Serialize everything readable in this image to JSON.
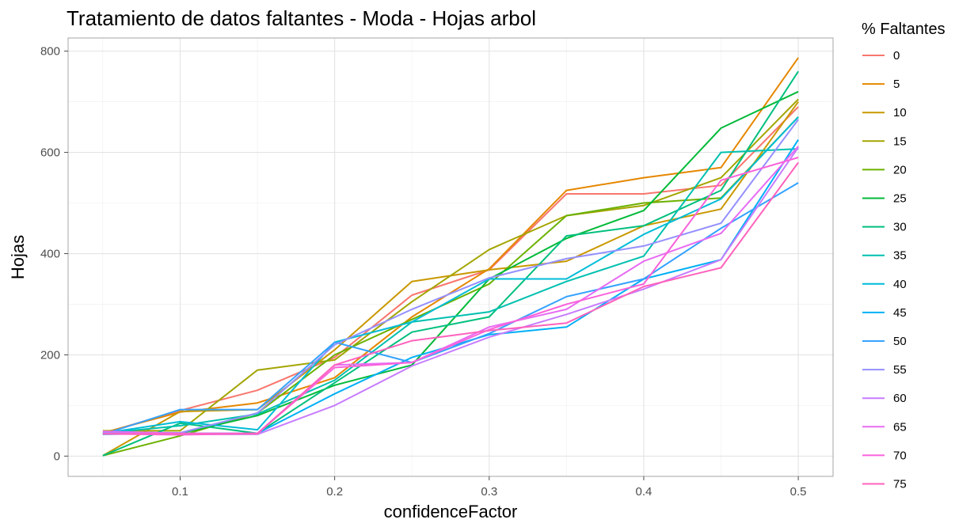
{
  "chart_data": {
    "type": "line",
    "title": "Tratamiento de datos faltantes - Moda - Hojas arbol",
    "xlabel": "confidenceFactor",
    "ylabel": "Hojas",
    "x": [
      0.05,
      0.1,
      0.15,
      0.2,
      0.25,
      0.3,
      0.35,
      0.4,
      0.45,
      0.5
    ],
    "xlim": [
      0.0275,
      0.5225
    ],
    "ylim": [
      -40,
      826
    ],
    "xticks": [
      0.1,
      0.2,
      0.3,
      0.4,
      0.5
    ],
    "xtick_labels": [
      "0.1",
      "0.2",
      "0.3",
      "0.4",
      "0.5"
    ],
    "yticks": [
      0,
      200,
      400,
      600,
      800
    ],
    "ytick_labels": [
      "0",
      "200",
      "400",
      "600",
      "800"
    ],
    "grid": true,
    "legend": {
      "title": "% Faltantes",
      "position": "right"
    },
    "series": [
      {
        "name": "0",
        "color": "#F8766D",
        "values": [
          45,
          90,
          130,
          195,
          318,
          368,
          518,
          518,
          535,
          690
        ]
      },
      {
        "name": "5",
        "color": "#E58700",
        "values": [
          46,
          87,
          105,
          155,
          275,
          370,
          525,
          550,
          570,
          787
        ]
      },
      {
        "name": "10",
        "color": "#C99800",
        "values": [
          1,
          88,
          92,
          210,
          345,
          368,
          385,
          455,
          488,
          700
        ]
      },
      {
        "name": "15",
        "color": "#A3A500",
        "values": [
          50,
          50,
          170,
          190,
          305,
          408,
          475,
          495,
          550,
          705
        ]
      },
      {
        "name": "20",
        "color": "#6BB100",
        "values": [
          1,
          40,
          85,
          200,
          270,
          340,
          475,
          500,
          510,
          670
        ]
      },
      {
        "name": "25",
        "color": "#00BA38",
        "values": [
          45,
          45,
          80,
          140,
          180,
          350,
          430,
          485,
          648,
          720
        ]
      },
      {
        "name": "30",
        "color": "#00BF7D",
        "values": [
          1,
          65,
          45,
          145,
          245,
          275,
          435,
          455,
          525,
          760
        ]
      },
      {
        "name": "35",
        "color": "#00C0AF",
        "values": [
          45,
          60,
          83,
          150,
          265,
          285,
          345,
          395,
          600,
          607
        ]
      },
      {
        "name": "40",
        "color": "#00BCD8",
        "values": [
          45,
          68,
          52,
          225,
          265,
          350,
          350,
          438,
          508,
          670
        ]
      },
      {
        "name": "45",
        "color": "#00B0F6",
        "values": [
          43,
          45,
          45,
          123,
          195,
          240,
          255,
          350,
          388,
          625
        ]
      },
      {
        "name": "50",
        "color": "#35A2FF",
        "values": [
          43,
          92,
          92,
          225,
          185,
          242,
          315,
          350,
          450,
          540
        ]
      },
      {
        "name": "55",
        "color": "#9590FF",
        "values": [
          47,
          46,
          85,
          220,
          290,
          352,
          390,
          415,
          460,
          665
        ]
      },
      {
        "name": "60",
        "color": "#C77CFF",
        "values": [
          44,
          43,
          43,
          100,
          178,
          235,
          280,
          330,
          388,
          610
        ]
      },
      {
        "name": "65",
        "color": "#E76BF3",
        "values": [
          49,
          45,
          45,
          180,
          185,
          255,
          290,
          385,
          440,
          612
        ]
      },
      {
        "name": "70",
        "color": "#FA62DB",
        "values": [
          44,
          42,
          45,
          175,
          185,
          250,
          300,
          340,
          545,
          590
        ]
      },
      {
        "name": "75",
        "color": "#FF62BC",
        "values": [
          44,
          44,
          44,
          180,
          228,
          248,
          263,
          335,
          372,
          580
        ]
      }
    ]
  }
}
